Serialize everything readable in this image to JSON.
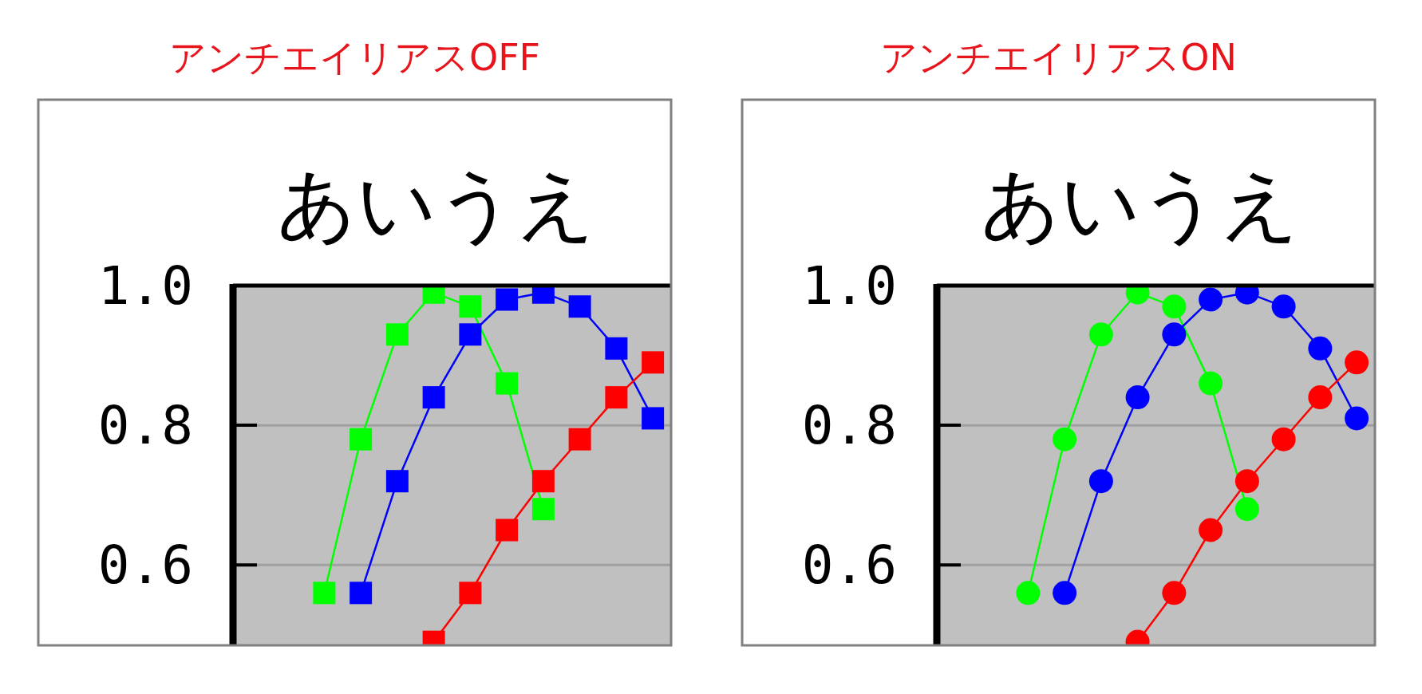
{
  "chart_data": [
    {
      "type": "line",
      "title": "アンチエイリアスOFF",
      "subtitle": "あいうえ",
      "categories": [
        null,
        null,
        null,
        null,
        null,
        null,
        null,
        null,
        null,
        null,
        null,
        null
      ],
      "ylim": [
        0.485,
        1.0
      ],
      "yticks": [
        {
          "value": 1.0,
          "label": "1.0"
        },
        {
          "value": 0.8,
          "label": "0.8"
        },
        {
          "value": 0.6,
          "label": "0.6"
        }
      ],
      "grid": "y",
      "tick_labels": "y",
      "marker": "square",
      "series": [
        {
          "color": "#00ff00",
          "values": [
            null,
            null,
            0.56,
            0.78,
            0.93,
            0.99,
            0.97,
            0.86,
            0.68,
            null,
            null,
            null
          ]
        },
        {
          "color": "#0000ff",
          "values": [
            null,
            null,
            null,
            0.56,
            0.72,
            0.84,
            0.93,
            0.98,
            0.99,
            0.97,
            0.91,
            0.81
          ]
        },
        {
          "color": "#ff0000",
          "values": [
            null,
            null,
            null,
            null,
            null,
            0.49,
            0.56,
            0.65,
            0.72,
            0.78,
            0.84,
            0.89
          ]
        }
      ]
    },
    {
      "type": "line",
      "title": "アンチエイリアスON",
      "subtitle": "あいうえ",
      "categories": [
        null,
        null,
        null,
        null,
        null,
        null,
        null,
        null,
        null,
        null,
        null,
        null
      ],
      "ylim": [
        0.485,
        1.0
      ],
      "yticks": [
        {
          "value": 1.0,
          "label": "1.0"
        },
        {
          "value": 0.8,
          "label": "0.8"
        },
        {
          "value": 0.6,
          "label": "0.6"
        }
      ],
      "grid": "y",
      "tick_labels": "y",
      "marker": "circle",
      "series": [
        {
          "color": "#00ff00",
          "values": [
            null,
            null,
            0.56,
            0.78,
            0.93,
            0.99,
            0.97,
            0.86,
            0.68,
            null,
            null,
            null
          ]
        },
        {
          "color": "#0000ff",
          "values": [
            null,
            null,
            null,
            0.56,
            0.72,
            0.84,
            0.93,
            0.98,
            0.99,
            0.97,
            0.91,
            0.81
          ]
        },
        {
          "color": "#ff0000",
          "values": [
            null,
            null,
            null,
            null,
            null,
            0.49,
            0.56,
            0.65,
            0.72,
            0.78,
            0.84,
            0.89
          ]
        }
      ]
    }
  ]
}
